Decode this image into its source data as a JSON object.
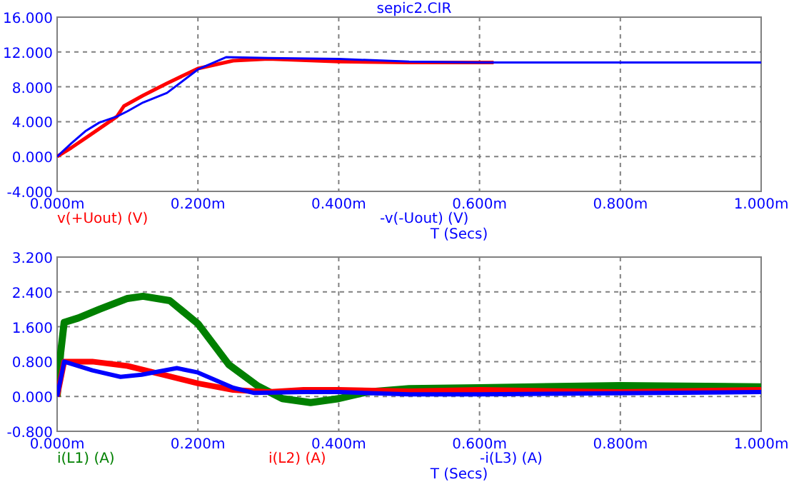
{
  "chart_data": [
    {
      "type": "line",
      "title": "sepic2.CIR",
      "xlabel": "T (Secs)",
      "grid": true,
      "legend": "bottom",
      "line_style": "solid",
      "xlim": [
        0,
        1
      ],
      "xticks": [
        {
          "value": 0,
          "label": "0.000m"
        },
        {
          "value": 0.2,
          "label": "0.200m"
        },
        {
          "value": 0.4,
          "label": "0.400m"
        },
        {
          "value": 0.6,
          "label": "0.600m"
        },
        {
          "value": 0.8,
          "label": "0.800m"
        },
        {
          "value": 1,
          "label": "1.000m"
        }
      ],
      "ylim": [
        -4,
        16
      ],
      "yticks": [
        {
          "value": -4,
          "label": "-4.000"
        },
        {
          "value": 0,
          "label": "0.000"
        },
        {
          "value": 4,
          "label": "4.000"
        },
        {
          "value": 8,
          "label": "8.000"
        },
        {
          "value": 12,
          "label": "12.000"
        },
        {
          "value": 16,
          "label": "16.000"
        }
      ],
      "series": [
        {
          "name": "v(+Uout) (V)",
          "color": "#ff0000",
          "x": [
            0,
            0.02,
            0.04,
            0.06,
            0.085,
            0.095,
            0.122,
            0.156,
            0.2,
            0.25,
            0.3,
            0.4,
            0.5,
            0.62
          ],
          "values": [
            0,
            1,
            2.1,
            3.2,
            4.6,
            5.8,
            7,
            8.4,
            10.1,
            11,
            11.2,
            10.9,
            10.8,
            10.8
          ]
        },
        {
          "name": "-v(-Uout) (V)",
          "color": "#0000ff",
          "x": [
            0,
            0.02,
            0.04,
            0.06,
            0.085,
            0.1,
            0.122,
            0.156,
            0.2,
            0.24,
            0.3,
            0.4,
            0.5,
            0.6,
            0.8,
            1
          ],
          "values": [
            0,
            1.5,
            2.9,
            3.9,
            4.6,
            5.2,
            6.2,
            7.3,
            10,
            11.4,
            11.3,
            11.2,
            10.9,
            10.8,
            10.8,
            10.8
          ]
        }
      ]
    },
    {
      "type": "line",
      "xlabel": "T (Secs)",
      "grid": true,
      "legend": "bottom",
      "line_style": "solid",
      "xlim": [
        0,
        1
      ],
      "xticks": [
        {
          "value": 0,
          "label": "0.000m"
        },
        {
          "value": 0.2,
          "label": "0.200m"
        },
        {
          "value": 0.4,
          "label": "0.400m"
        },
        {
          "value": 0.6,
          "label": "0.600m"
        },
        {
          "value": 0.8,
          "label": "0.800m"
        },
        {
          "value": 1,
          "label": "1.000m"
        }
      ],
      "ylim": [
        -0.8,
        3.2
      ],
      "yticks": [
        {
          "value": -0.8,
          "label": "-0.800"
        },
        {
          "value": 0,
          "label": "0.000"
        },
        {
          "value": 0.8,
          "label": "0.800"
        },
        {
          "value": 1.6,
          "label": "1.600"
        },
        {
          "value": 2.4,
          "label": "2.400"
        },
        {
          "value": 3.2,
          "label": "3.200"
        }
      ],
      "series": [
        {
          "name": "i(L1) (A)",
          "color": "#008000",
          "x": [
            0,
            0.005,
            0.01,
            0.03,
            0.06,
            0.1,
            0.122,
            0.16,
            0.2,
            0.244,
            0.285,
            0.32,
            0.36,
            0.4,
            0.44,
            0.5,
            0.6,
            0.8,
            1
          ],
          "values": [
            0,
            1,
            1.7,
            1.8,
            2,
            2.25,
            2.3,
            2.2,
            1.67,
            0.73,
            0.24,
            -0.05,
            -0.14,
            -0.05,
            0.1,
            0.18,
            0.2,
            0.25,
            0.22
          ]
        },
        {
          "name": "i(L2) (A)",
          "color": "#ff0000",
          "x": [
            0,
            0.01,
            0.05,
            0.1,
            0.15,
            0.2,
            0.25,
            0.3,
            0.35,
            0.4,
            0.5,
            0.6,
            0.8,
            1
          ],
          "values": [
            0,
            0.8,
            0.8,
            0.7,
            0.5,
            0.3,
            0.15,
            0.1,
            0.15,
            0.15,
            0.12,
            0.15,
            0.1,
            0.15
          ]
        },
        {
          "name": "-i(L3) (A)",
          "color": "#0000ff",
          "x": [
            0,
            0.01,
            0.05,
            0.09,
            0.12,
            0.17,
            0.2,
            0.25,
            0.28,
            0.35,
            0.4,
            0.5,
            0.6,
            1
          ],
          "values": [
            0,
            0.8,
            0.6,
            0.45,
            0.5,
            0.65,
            0.55,
            0.2,
            0.08,
            0.1,
            0.1,
            0.05,
            0.05,
            0.1
          ]
        }
      ]
    }
  ]
}
